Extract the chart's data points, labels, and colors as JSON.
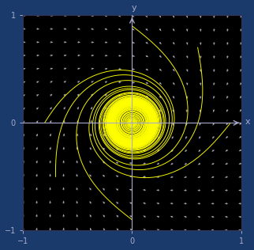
{
  "xlim": [
    -1,
    1
  ],
  "ylim": [
    -1,
    1
  ],
  "background_color": "#000000",
  "outer_background": "#1a3a6b",
  "quiver_color": "#bbbbcc",
  "trajectory_color": "#ffff00",
  "axis_color": "#aaaacc",
  "tick_label_color": "#aaaacc",
  "xlabel": "x",
  "ylabel": "y",
  "x_ticks": [
    -1,
    0,
    1
  ],
  "y_ticks": [
    -1,
    0,
    1
  ],
  "grid_nx": 17,
  "grid_ny": 17,
  "mu": 0.04,
  "figsize": [
    3.22,
    3.16
  ],
  "dpi": 100
}
